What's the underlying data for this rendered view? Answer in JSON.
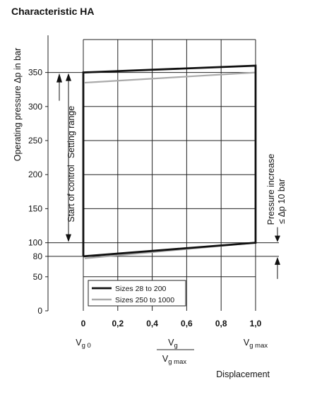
{
  "title": "Characteristic HA",
  "chart_data": {
    "type": "line",
    "title": "Characteristic HA",
    "ylabel": "Operating pressure Δp in bar",
    "xlabel": "Displacement",
    "ylim": [
      0,
      400
    ],
    "xlim": [
      0,
      1.0
    ],
    "y_ticks": [
      {
        "value": 0,
        "label": "0"
      },
      {
        "value": 50,
        "label": "50"
      },
      {
        "value": 80,
        "label": "80"
      },
      {
        "value": 100,
        "label": "100"
      },
      {
        "value": 150,
        "label": "150"
      },
      {
        "value": 200,
        "label": "200"
      },
      {
        "value": 250,
        "label": "250"
      },
      {
        "value": 300,
        "label": "300"
      },
      {
        "value": 350,
        "label": "350"
      }
    ],
    "x_ticks": [
      {
        "value": 0,
        "label": "0"
      },
      {
        "value": 0.2,
        "label": "0,2"
      },
      {
        "value": 0.4,
        "label": "0,4"
      },
      {
        "value": 0.6,
        "label": "0,6"
      },
      {
        "value": 0.8,
        "label": "0,8"
      },
      {
        "value": 1.0,
        "label": "1,0"
      }
    ],
    "x_sublabels": {
      "vg0": {
        "main": "V",
        "sub": "g 0"
      },
      "ratio_num": {
        "main": "V",
        "sub": "g"
      },
      "ratio_den": {
        "main": "V",
        "sub": "g max"
      },
      "vgmax": {
        "main": "V",
        "sub": "g max"
      }
    },
    "series": [
      {
        "name": "Sizes 28 to 200",
        "color": "#111111",
        "x": [
          0,
          0,
          1.0,
          1.0,
          0
        ],
        "y": [
          80,
          350,
          360,
          100,
          80
        ]
      },
      {
        "name": "Sizes 250 to 1000",
        "color": "#aaaaaa",
        "x": [
          0,
          1.0,
          0,
          1.0
        ],
        "y": [
          335,
          350,
          77,
          100
        ]
      }
    ],
    "annotations": {
      "setting_range": "Setting range",
      "start_of_control": "Start of control",
      "pressure_increase_line1": "Pressure increase",
      "pressure_increase_line2": "≤ Δp 10 bar"
    },
    "grid": true,
    "legend": "bottom-left"
  }
}
